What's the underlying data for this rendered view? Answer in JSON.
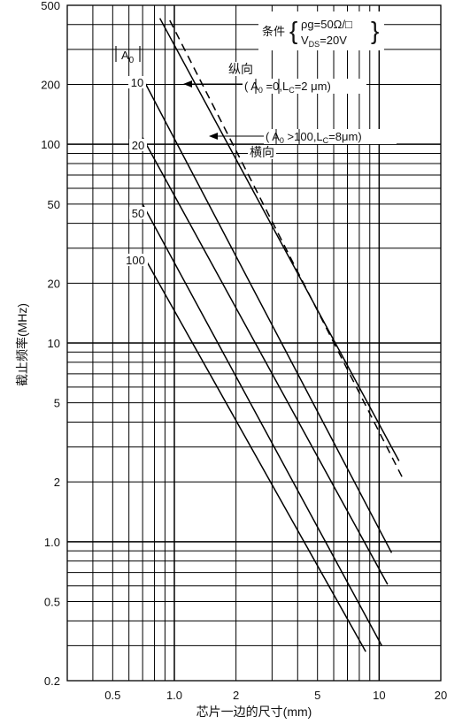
{
  "chart_data": {
    "type": "line",
    "x_scale": "log",
    "y_scale": "log",
    "xlim": [
      0.3,
      20
    ],
    "ylim": [
      0.2,
      500
    ],
    "grid": true,
    "xlabel": "芯片一边的尺寸(mm)",
    "ylabel": "截止频率(MHz)",
    "x_tick_labels": [
      {
        "value": 0.5,
        "label": "0.5"
      },
      {
        "value": 1,
        "label": "1.0"
      },
      {
        "value": 2,
        "label": "2"
      },
      {
        "value": 5,
        "label": "5"
      },
      {
        "value": 10,
        "label": "10"
      },
      {
        "value": 20,
        "label": "20"
      }
    ],
    "y_tick_labels": [
      {
        "value": 0.2,
        "label": "0.2"
      },
      {
        "value": 0.5,
        "label": "0.5"
      },
      {
        "value": 1,
        "label": "1.0"
      },
      {
        "value": 2,
        "label": "2"
      },
      {
        "value": 5,
        "label": "5"
      },
      {
        "value": 10,
        "label": "10"
      },
      {
        "value": 20,
        "label": "20"
      },
      {
        "value": 50,
        "label": "50"
      },
      {
        "value": 100,
        "label": "100"
      },
      {
        "value": 200,
        "label": "200"
      },
      {
        "value": 500,
        "label": "500"
      }
    ],
    "series": [
      {
        "name": "10",
        "style": "solid",
        "points": [
          [
            0.7,
            215
          ],
          [
            11.5,
            0.88
          ]
        ]
      },
      {
        "name": "20",
        "style": "solid",
        "points": [
          [
            0.7,
            108
          ],
          [
            11,
            0.61
          ]
        ]
      },
      {
        "name": "50",
        "style": "solid",
        "points": [
          [
            0.7,
            50
          ],
          [
            10.3,
            0.3
          ]
        ]
      },
      {
        "name": "100",
        "style": "solid",
        "points": [
          [
            0.7,
            28
          ],
          [
            8.6,
            0.28
          ]
        ]
      },
      {
        "name": "纵向",
        "style": "solid",
        "points": [
          [
            0.85,
            430
          ],
          [
            12.5,
            2.55
          ]
        ]
      },
      {
        "name": "横向",
        "style": "dashed",
        "points": [
          [
            0.95,
            420
          ],
          [
            13,
            2.1
          ]
        ]
      }
    ],
    "curve_labels": {
      "a0_header_base": "A",
      "a0_header_sub": "0",
      "a10": "10",
      "a20": "20",
      "a50": "50",
      "a100": "100"
    },
    "annotations": {
      "conditions_label": "条件",
      "rho_line": "ρg=50Ω/□",
      "vds_base": "V",
      "vds_sub": "DS",
      "vds_rest": "=20V",
      "vertical_label": "纵向",
      "vertical_cond": {
        "p1": "( ",
        "a": "A",
        "a_sub": "0",
        "p2": " =0,L",
        "c_sub": "C",
        "p3": "=2 μm)"
      },
      "horizontal_label": "横向",
      "horizontal_cond": {
        "p1": "( ",
        "a": "A",
        "a_sub": "0",
        "p2": " >100,L",
        "c_sub": "C",
        "p3": "=8μm)"
      }
    }
  }
}
